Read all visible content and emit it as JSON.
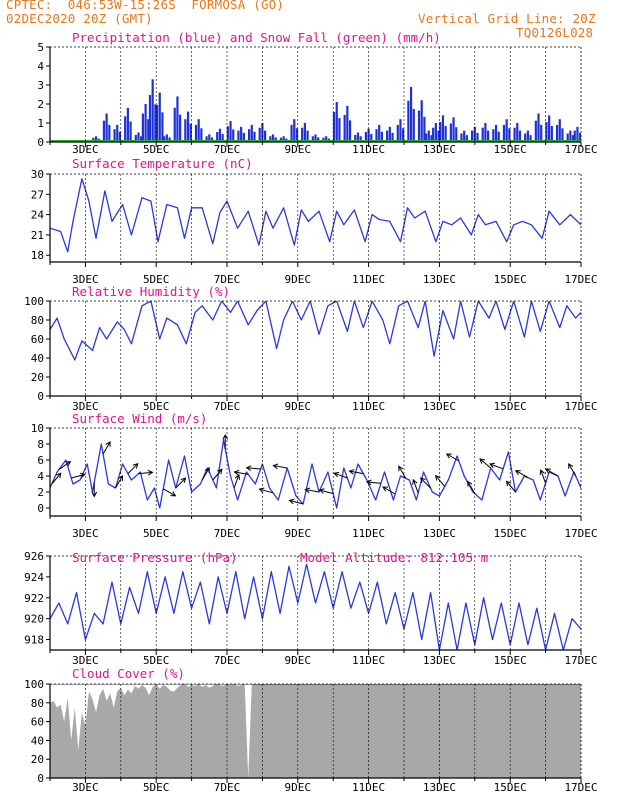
{
  "header": {
    "line1": "CPTEC:  046:53W-15:26S  FORMOSA (GO)",
    "line2": "02DEC2020 20Z (GMT)",
    "grid_note": "Vertical Grid Line: 20Z",
    "run_code": "TQ0126L028"
  },
  "colors": {
    "header": "#e8781e",
    "title": "#e0148c",
    "line": "#2a3ad8",
    "bar": "#1e30d8",
    "snow": "#22b022",
    "cloud": "#a8a8a8"
  },
  "x_ticks": [
    "3DEC",
    "5DEC",
    "7DEC",
    "9DEC",
    "11DEC",
    "13DEC",
    "15DEC",
    "17DEC"
  ],
  "chart_data": [
    {
      "type": "bar",
      "title": "Precipitation (blue) and Snow Fall (green) (mm/h)",
      "ylim": [
        0,
        5
      ],
      "yticks": [
        "0",
        "1",
        "2",
        "3",
        "4",
        "5"
      ],
      "series": [
        {
          "name": "Precipitation",
          "x": [
            2.9,
            3.3,
            3.6,
            3.9,
            4.2,
            4.5,
            4.7,
            4.9,
            5.1,
            5.3,
            5.6,
            5.9,
            6.2,
            6.5,
            6.8,
            7.1,
            7.4,
            7.7,
            8.0,
            8.3,
            8.6,
            8.9,
            9.2,
            9.5,
            9.8,
            10.1,
            10.4,
            10.7,
            11.0,
            11.3,
            11.6,
            11.9,
            12.2,
            12.5,
            12.7,
            12.9,
            13.1,
            13.4,
            13.7,
            14.0,
            14.3,
            14.6,
            14.9,
            15.2,
            15.5,
            15.8,
            16.1,
            16.4,
            16.7,
            16.9
          ],
          "values": [
            0.1,
            0.3,
            1.5,
            0.9,
            1.8,
            0.5,
            2.0,
            3.3,
            2.6,
            0.4,
            2.4,
            1.6,
            1.2,
            0.4,
            0.7,
            1.1,
            0.8,
            0.9,
            1.0,
            0.4,
            0.3,
            1.2,
            1.0,
            0.4,
            0.3,
            2.1,
            1.9,
            0.5,
            0.7,
            0.9,
            0.8,
            1.2,
            2.9,
            2.2,
            0.6,
            1.0,
            1.4,
            1.3,
            0.6,
            0.8,
            1.0,
            0.9,
            1.2,
            1.0,
            0.6,
            1.5,
            1.4,
            1.2,
            0.6,
            0.8
          ]
        },
        {
          "name": "Snow Fall",
          "values": [
            0
          ]
        }
      ]
    },
    {
      "type": "line",
      "title": "Surface Temperature (nC)",
      "ylim": [
        17,
        30
      ],
      "yticks": [
        "18",
        "21",
        "24",
        "27",
        "30"
      ],
      "series": [
        {
          "name": "Temperature",
          "x": [
            2.0,
            2.3,
            2.5,
            2.65,
            2.9,
            3.1,
            3.3,
            3.55,
            3.75,
            4.05,
            4.3,
            4.6,
            4.85,
            5.05,
            5.3,
            5.6,
            5.8,
            6.0,
            6.3,
            6.6,
            6.8,
            7.0,
            7.3,
            7.6,
            7.9,
            8.1,
            8.3,
            8.6,
            8.9,
            9.1,
            9.3,
            9.6,
            9.9,
            10.1,
            10.3,
            10.6,
            10.9,
            11.1,
            11.3,
            11.6,
            11.9,
            12.1,
            12.3,
            12.6,
            12.9,
            13.1,
            13.35,
            13.6,
            13.9,
            14.1,
            14.3,
            14.6,
            14.9,
            15.1,
            15.35,
            15.6,
            15.9,
            16.1,
            16.4,
            16.7,
            17.0
          ],
          "values": [
            22.0,
            21.5,
            18.5,
            23.0,
            29.3,
            26.0,
            20.5,
            27.5,
            23.0,
            25.5,
            21.0,
            26.5,
            26.0,
            20.0,
            25.5,
            25.0,
            20.5,
            25.0,
            25.0,
            19.7,
            24.3,
            26.0,
            22.0,
            24.5,
            19.5,
            24.5,
            22.0,
            25.0,
            19.5,
            24.7,
            23.0,
            24.5,
            20.0,
            24.5,
            22.5,
            24.7,
            20.0,
            24.0,
            23.3,
            23.0,
            20.0,
            25.0,
            23.5,
            24.5,
            20.0,
            23.0,
            22.5,
            23.5,
            21.0,
            24.0,
            22.5,
            23.0,
            20.0,
            22.5,
            23.0,
            22.5,
            20.5,
            24.5,
            22.5,
            24.0,
            22.5
          ]
        }
      ]
    },
    {
      "type": "line",
      "title": "Relative Humidity (%)",
      "ylim": [
        0,
        100
      ],
      "yticks": [
        "0",
        "20",
        "40",
        "60",
        "80",
        "100"
      ],
      "series": [
        {
          "name": "Humidity",
          "x": [
            2.0,
            2.2,
            2.4,
            2.7,
            2.9,
            3.2,
            3.4,
            3.6,
            3.9,
            4.1,
            4.3,
            4.6,
            4.85,
            5.1,
            5.3,
            5.6,
            5.85,
            6.1,
            6.3,
            6.6,
            6.85,
            7.1,
            7.3,
            7.6,
            7.85,
            8.1,
            8.4,
            8.6,
            8.85,
            9.1,
            9.35,
            9.6,
            9.85,
            10.1,
            10.4,
            10.6,
            10.85,
            11.1,
            11.4,
            11.6,
            11.85,
            12.1,
            12.4,
            12.6,
            12.85,
            13.1,
            13.4,
            13.6,
            13.85,
            14.1,
            14.4,
            14.6,
            14.85,
            15.1,
            15.4,
            15.6,
            15.85,
            16.1,
            16.4,
            16.6,
            16.85,
            17.0
          ],
          "values": [
            70,
            82,
            60,
            38,
            58,
            48,
            72,
            60,
            78,
            70,
            55,
            95,
            100,
            60,
            82,
            75,
            55,
            88,
            95,
            80,
            100,
            88,
            100,
            75,
            90,
            100,
            50,
            80,
            100,
            80,
            100,
            65,
            95,
            100,
            68,
            100,
            72,
            100,
            80,
            55,
            95,
            100,
            72,
            100,
            42,
            90,
            60,
            100,
            62,
            100,
            82,
            100,
            70,
            100,
            62,
            100,
            68,
            100,
            72,
            95,
            82,
            88
          ]
        }
      ]
    },
    {
      "type": "line",
      "title": "Surface Wind (m/s)",
      "ylim": [
        -1,
        10
      ],
      "yticks": [
        "0",
        "2",
        "4",
        "6",
        "8",
        "10"
      ],
      "series": [
        {
          "name": "Wind speed",
          "x": [
            2.0,
            2.2,
            2.45,
            2.65,
            2.85,
            3.05,
            3.2,
            3.45,
            3.65,
            3.85,
            4.05,
            4.3,
            4.55,
            4.75,
            4.95,
            5.1,
            5.35,
            5.55,
            5.8,
            6.0,
            6.25,
            6.45,
            6.7,
            6.9,
            7.1,
            7.3,
            7.55,
            7.8,
            8.0,
            8.2,
            8.45,
            8.7,
            8.95,
            9.15,
            9.4,
            9.6,
            9.85,
            10.1,
            10.3,
            10.5,
            10.7,
            10.95,
            11.2,
            11.45,
            11.7,
            11.9,
            12.15,
            12.35,
            12.55,
            12.8,
            13.0,
            13.25,
            13.5,
            13.7,
            13.95,
            14.2,
            14.45,
            14.7,
            14.95,
            15.15,
            15.4,
            15.65,
            15.85,
            16.1,
            16.35,
            16.55,
            16.8,
            17.0
          ],
          "values": [
            2.5,
            4.5,
            6.0,
            3.0,
            3.5,
            5.5,
            2.0,
            8.0,
            3.0,
            2.5,
            5.5,
            3.5,
            4.5,
            1.0,
            2.5,
            0.0,
            6.0,
            2.5,
            6.5,
            2.0,
            3.0,
            5.0,
            2.5,
            8.5,
            4.0,
            1.0,
            4.5,
            3.0,
            5.5,
            2.5,
            1.0,
            5.0,
            1.5,
            0.5,
            5.5,
            2.0,
            4.5,
            0.0,
            5.0,
            2.5,
            5.5,
            3.5,
            1.0,
            4.5,
            1.0,
            4.0,
            3.5,
            1.0,
            4.5,
            2.0,
            1.5,
            3.5,
            6.5,
            4.0,
            2.0,
            1.0,
            5.0,
            3.5,
            7.0,
            2.0,
            4.0,
            3.5,
            1.0,
            4.5,
            4.0,
            1.5,
            4.5,
            2.5
          ]
        }
      ],
      "arrows": [
        {
          "x": 2.05,
          "dir": 40
        },
        {
          "x": 2.25,
          "dir": 55
        },
        {
          "x": 2.6,
          "dir": 75
        },
        {
          "x": 3.25,
          "dir": 180
        },
        {
          "x": 3.5,
          "dir": 30
        },
        {
          "x": 3.85,
          "dir": 30
        },
        {
          "x": 4.2,
          "dir": 45
        },
        {
          "x": 4.5,
          "dir": 85
        },
        {
          "x": 5.2,
          "dir": 120
        },
        {
          "x": 5.55,
          "dir": 45
        },
        {
          "x": 6.3,
          "dir": 30
        },
        {
          "x": 6.6,
          "dir": 40
        },
        {
          "x": 6.95,
          "dir": 0
        },
        {
          "x": 7.2,
          "dir": 20
        },
        {
          "x": 7.6,
          "dir": -80
        },
        {
          "x": 7.95,
          "dir": -85
        },
        {
          "x": 8.3,
          "dir": -75
        },
        {
          "x": 8.7,
          "dir": -80
        },
        {
          "x": 9.15,
          "dir": -75
        },
        {
          "x": 9.6,
          "dir": -80
        },
        {
          "x": 10.0,
          "dir": -75
        },
        {
          "x": 10.4,
          "dir": -70
        },
        {
          "x": 10.85,
          "dir": -80
        },
        {
          "x": 11.35,
          "dir": -85
        },
        {
          "x": 11.75,
          "dir": -60
        },
        {
          "x": 12.05,
          "dir": -30
        },
        {
          "x": 12.4,
          "dir": -20
        },
        {
          "x": 12.75,
          "dir": -45
        },
        {
          "x": 13.15,
          "dir": -40
        },
        {
          "x": 13.55,
          "dir": -60
        },
        {
          "x": 14.0,
          "dir": -30
        },
        {
          "x": 14.45,
          "dir": -50
        },
        {
          "x": 14.8,
          "dir": -70
        },
        {
          "x": 15.15,
          "dir": -40
        },
        {
          "x": 15.5,
          "dir": -60
        },
        {
          "x": 16.0,
          "dir": -20
        },
        {
          "x": 16.35,
          "dir": -60
        },
        {
          "x": 16.85,
          "dir": -30
        }
      ]
    },
    {
      "type": "line",
      "title": "Surface Pressure (hPa)",
      "annotation": "Model Altitude: 812.105 m",
      "ylim": [
        917,
        926
      ],
      "yticks": [
        "918",
        "920",
        "922",
        "924",
        "926"
      ],
      "series": [
        {
          "name": "Pressure",
          "x": [
            2.0,
            2.25,
            2.5,
            2.75,
            3.0,
            3.25,
            3.5,
            3.75,
            4.0,
            4.25,
            4.5,
            4.75,
            5.0,
            5.25,
            5.5,
            5.75,
            6.0,
            6.25,
            6.5,
            6.75,
            7.0,
            7.25,
            7.5,
            7.75,
            8.0,
            8.25,
            8.5,
            8.75,
            9.0,
            9.25,
            9.5,
            9.75,
            10.0,
            10.25,
            10.5,
            10.75,
            11.0,
            11.25,
            11.5,
            11.75,
            12.0,
            12.25,
            12.5,
            12.75,
            13.0,
            13.25,
            13.5,
            13.75,
            14.0,
            14.25,
            14.5,
            14.75,
            15.0,
            15.25,
            15.5,
            15.75,
            16.0,
            16.25,
            16.5,
            16.75,
            17.0
          ],
          "values": [
            920.0,
            921.5,
            919.5,
            922.5,
            918.0,
            920.5,
            919.5,
            923.5,
            919.5,
            923.0,
            920.5,
            924.5,
            920.5,
            924.0,
            920.5,
            924.5,
            921.0,
            923.5,
            919.5,
            924.0,
            920.5,
            924.5,
            920.0,
            924.0,
            920.0,
            924.5,
            920.5,
            925.0,
            921.5,
            925.2,
            921.5,
            924.5,
            921.0,
            924.5,
            921.0,
            923.5,
            920.5,
            923.5,
            919.5,
            922.5,
            919.0,
            922.5,
            918.0,
            922.5,
            917.0,
            921.5,
            917.0,
            921.5,
            917.5,
            922.0,
            918.0,
            921.5,
            917.5,
            921.5,
            917.5,
            921.0,
            917.0,
            920.5,
            917.0,
            920.0,
            919.0
          ]
        }
      ]
    },
    {
      "type": "bar",
      "title": "Cloud Cover (%)",
      "ylim": [
        0,
        100
      ],
      "yticks": [
        "0",
        "20",
        "40",
        "60",
        "80",
        "100"
      ],
      "series": [
        {
          "name": "Cloud cover",
          "x": [
            2.0,
            2.1,
            2.2,
            2.3,
            2.4,
            2.5,
            2.6,
            2.7,
            2.8,
            2.9,
            3.0,
            3.1,
            3.2,
            3.3,
            3.4,
            3.5,
            3.6,
            3.7,
            3.8,
            3.9,
            4.0,
            4.1,
            4.2,
            4.3,
            4.4,
            4.5,
            4.6,
            4.7,
            4.8,
            4.9,
            5.0,
            5.1,
            5.2,
            5.3,
            5.4,
            5.5,
            5.6,
            5.7,
            5.8,
            5.9,
            6.0,
            6.1,
            6.2,
            6.3,
            6.4,
            6.5,
            6.6,
            6.7,
            6.8,
            6.9,
            7.0,
            7.1,
            7.2,
            7.3,
            7.4,
            7.5,
            7.6,
            7.7,
            7.8,
            7.9,
            8.0
          ],
          "values": [
            80,
            82,
            75,
            78,
            60,
            85,
            40,
            75,
            30,
            70,
            55,
            92,
            84,
            70,
            88,
            95,
            82,
            90,
            75,
            92,
            96,
            88,
            94,
            90,
            98,
            95,
            99,
            96,
            88,
            97,
            100,
            95,
            99,
            97,
            93,
            92,
            96,
            99,
            100,
            97,
            99,
            98,
            100,
            97,
            99,
            96,
            98,
            100,
            99,
            98,
            100,
            99,
            100,
            98,
            99,
            100,
            0,
            100,
            100,
            100,
            100
          ]
        }
      ],
      "note": "100 from 8DEC to 17DEC"
    }
  ]
}
